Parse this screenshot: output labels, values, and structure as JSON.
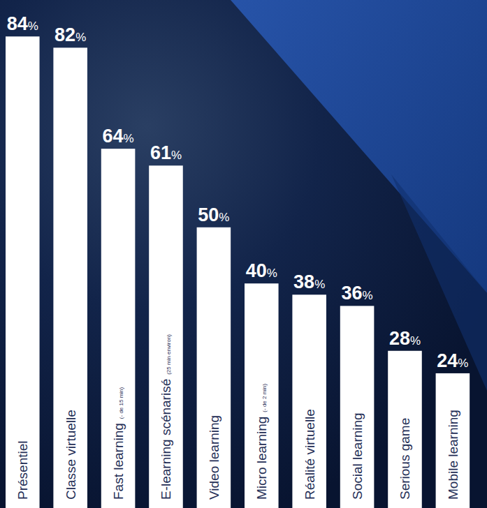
{
  "chart_data": {
    "type": "bar",
    "categories": [
      "Présentiel",
      "Classe virtuelle",
      "Fast learning",
      "E-learning scénarisé",
      "Video learning",
      "Micro learning",
      "Réalité virtuelle",
      "Social learning",
      "Serious game",
      "Mobile learning"
    ],
    "annotations": [
      null,
      null,
      "(- de 15 min)",
      "(25 min environ)",
      null,
      "(- de 2 min)",
      null,
      null,
      null,
      null
    ],
    "values": [
      84,
      82,
      64,
      61,
      50,
      40,
      38,
      36,
      28,
      24
    ],
    "value_labels": [
      "84%",
      "82%",
      "64%",
      "61%",
      "50%",
      "40%",
      "38%",
      "36%",
      "28%",
      "24%"
    ],
    "color": "#ffffff",
    "ylim": [
      0,
      90
    ],
    "grid": false,
    "data_labels": true,
    "tick_labels": false
  }
}
